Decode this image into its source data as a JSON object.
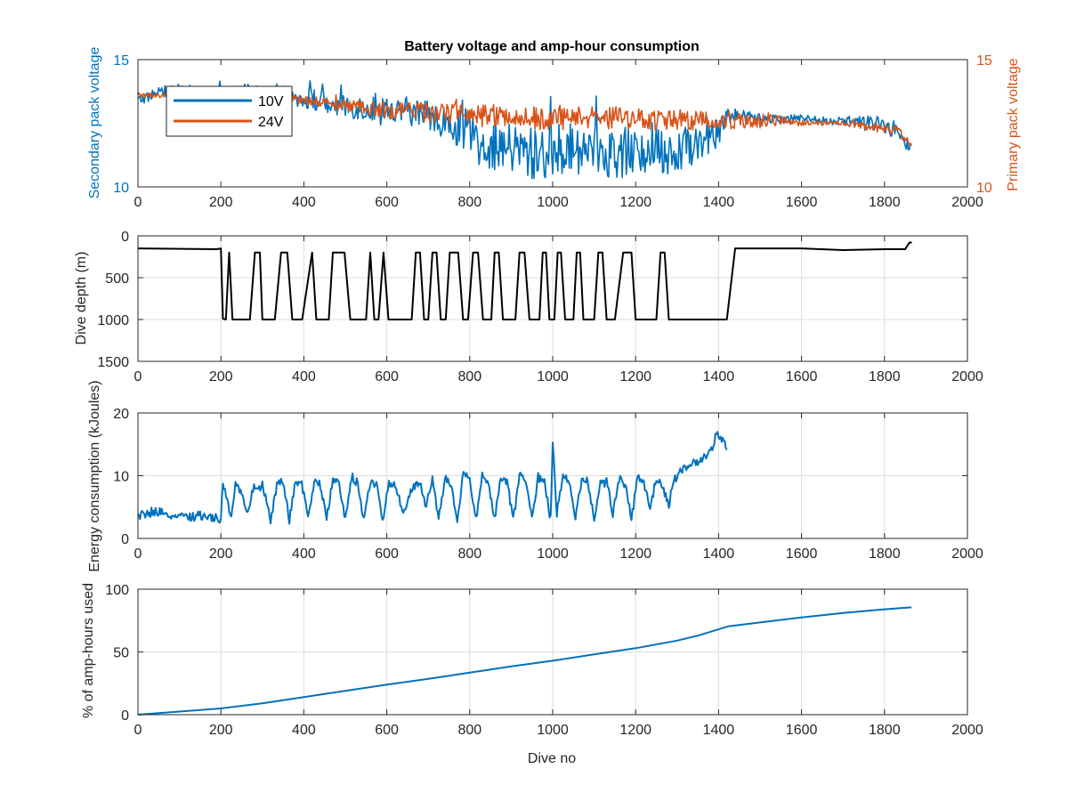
{
  "colors": {
    "blue": "#0072bd",
    "orange": "#d95319",
    "black": "#000000",
    "axis": "#262626",
    "grid": "#dcdcdc"
  },
  "chart_data": [
    {
      "type": "line",
      "title": "Battery voltage and amp-hour consumption",
      "xlabel": "",
      "ylabel": "Secondary pack voltage",
      "ylabel_right": "Primary pack voltage",
      "xlim": [
        0,
        2000
      ],
      "ylim": [
        10,
        15
      ],
      "ylim_right": [
        10,
        15
      ],
      "xticks": [
        0,
        200,
        400,
        600,
        800,
        1000,
        1200,
        1400,
        1600,
        1800,
        2000
      ],
      "yticks": [
        10,
        15
      ],
      "yticks_right": [
        10,
        15
      ],
      "grid": false,
      "legend_placement": "top-left",
      "series": [
        {
          "name": "10V",
          "color": "#0072bd",
          "axis": "left",
          "x": [
            0,
            50,
            100,
            150,
            200,
            250,
            300,
            350,
            400,
            450,
            500,
            550,
            600,
            650,
            700,
            750,
            800,
            850,
            900,
            950,
            1000,
            1050,
            1100,
            1150,
            1200,
            1250,
            1300,
            1350,
            1400,
            1420,
            1450,
            1500,
            1550,
            1600,
            1650,
            1700,
            1750,
            1800,
            1830,
            1850,
            1865
          ],
          "y": [
            13.4,
            13.7,
            13.8,
            13.7,
            13.6,
            13.8,
            13.6,
            13.6,
            13.5,
            13.3,
            13.2,
            13.1,
            12.9,
            13.0,
            12.8,
            12.5,
            12.0,
            11.6,
            11.5,
            11.3,
            11.4,
            11.5,
            11.5,
            11.3,
            11.4,
            11.6,
            11.2,
            11.8,
            12.4,
            12.8,
            12.8,
            12.7,
            12.7,
            12.7,
            12.6,
            12.6,
            12.5,
            12.4,
            12.2,
            11.8,
            11.5
          ],
          "noise_amplitude": [
            0.2,
            0.25,
            0.25,
            0.25,
            0.3,
            0.3,
            0.35,
            0.35,
            0.4,
            0.45,
            0.5,
            0.5,
            0.55,
            0.55,
            0.6,
            0.7,
            0.9,
            1.0,
            1.0,
            1.1,
            1.1,
            1.0,
            1.0,
            1.0,
            1.0,
            1.0,
            1.0,
            0.9,
            0.8,
            0.3,
            0.25,
            0.2,
            0.2,
            0.15,
            0.15,
            0.2,
            0.3,
            0.35,
            0.3,
            0.3,
            0.2
          ]
        },
        {
          "name": "24V",
          "color": "#d95319",
          "axis": "right",
          "x": [
            0,
            50,
            100,
            150,
            200,
            250,
            300,
            350,
            400,
            450,
            500,
            550,
            600,
            650,
            700,
            750,
            800,
            850,
            900,
            950,
            1000,
            1050,
            1100,
            1150,
            1200,
            1250,
            1300,
            1350,
            1400,
            1450,
            1500,
            1550,
            1600,
            1650,
            1700,
            1750,
            1800,
            1830,
            1850,
            1865
          ],
          "y": [
            13.6,
            13.6,
            13.6,
            13.5,
            13.5,
            13.5,
            13.5,
            13.4,
            13.4,
            13.3,
            13.2,
            13.1,
            13.0,
            13.0,
            12.9,
            12.9,
            12.8,
            12.8,
            12.8,
            12.7,
            12.7,
            12.7,
            12.7,
            12.7,
            12.7,
            12.6,
            12.6,
            12.6,
            12.6,
            12.6,
            12.6,
            12.6,
            12.5,
            12.5,
            12.5,
            12.4,
            12.3,
            12.2,
            11.9,
            11.6
          ],
          "noise_amplitude": [
            0.1,
            0.1,
            0.1,
            0.1,
            0.1,
            0.1,
            0.1,
            0.12,
            0.15,
            0.2,
            0.25,
            0.3,
            0.35,
            0.35,
            0.4,
            0.4,
            0.4,
            0.45,
            0.45,
            0.45,
            0.45,
            0.45,
            0.45,
            0.45,
            0.45,
            0.4,
            0.4,
            0.4,
            0.35,
            0.3,
            0.3,
            0.2,
            0.1,
            0.1,
            0.1,
            0.15,
            0.2,
            0.2,
            0.15,
            0.1
          ]
        }
      ]
    },
    {
      "type": "line",
      "title": "",
      "xlabel": "",
      "ylabel": "Dive depth (m)",
      "xlim": [
        0,
        2000
      ],
      "ylim": [
        0,
        1500
      ],
      "y_reversed": true,
      "xticks": [
        0,
        200,
        400,
        600,
        800,
        1000,
        1200,
        1400,
        1600,
        1800,
        2000
      ],
      "yticks": [
        0,
        500,
        1000,
        1500
      ],
      "grid": true,
      "series": [
        {
          "color": "#000000",
          "x": [
            0,
            190,
            200,
            205,
            212,
            220,
            228,
            236,
            244,
            270,
            282,
            294,
            300,
            315,
            330,
            345,
            360,
            372,
            384,
            396,
            420,
            430,
            440,
            450,
            460,
            470,
            484,
            498,
            512,
            520,
            528,
            536,
            550,
            560,
            570,
            580,
            592,
            604,
            620,
            640,
            660,
            670,
            680,
            690,
            700,
            710,
            720,
            730,
            742,
            752,
            762,
            772,
            784,
            796,
            808,
            820,
            832,
            842,
            852,
            860,
            870,
            880,
            890,
            900,
            910,
            920,
            932,
            944,
            956,
            968,
            976,
            984,
            992,
            1000,
            1004,
            1012,
            1020,
            1030,
            1040,
            1050,
            1058,
            1066,
            1074,
            1090,
            1100,
            1110,
            1120,
            1130,
            1140,
            1150,
            1170,
            1180,
            1190,
            1200,
            1230,
            1240,
            1250,
            1260,
            1270,
            1280,
            1400,
            1410,
            1420,
            1440,
            1600,
            1700,
            1800,
            1850,
            1860,
            1866
          ],
          "y": [
            150,
            160,
            150,
            990,
            1000,
            200,
            1000,
            1000,
            1000,
            1000,
            200,
            200,
            1000,
            1000,
            1000,
            200,
            200,
            1000,
            1000,
            1000,
            200,
            1000,
            1000,
            1000,
            1000,
            200,
            200,
            200,
            1000,
            1000,
            1000,
            1000,
            1000,
            200,
            1000,
            1000,
            200,
            1000,
            1000,
            1000,
            1000,
            200,
            200,
            1000,
            1000,
            200,
            200,
            1000,
            1000,
            200,
            200,
            200,
            1000,
            1000,
            200,
            200,
            1000,
            1000,
            1000,
            200,
            200,
            1000,
            1000,
            1000,
            1000,
            200,
            200,
            1000,
            1000,
            1000,
            200,
            200,
            1000,
            1000,
            1000,
            200,
            200,
            1000,
            1000,
            1000,
            200,
            200,
            1000,
            1000,
            1000,
            200,
            200,
            1000,
            1000,
            1000,
            200,
            200,
            200,
            1000,
            1000,
            1000,
            1000,
            200,
            200,
            1000,
            1000,
            1000,
            1000,
            150,
            150,
            170,
            160,
            160,
            80,
            80
          ]
        }
      ]
    },
    {
      "type": "line",
      "title": "",
      "xlabel": "",
      "ylabel": "Energy consumption (kJoules)",
      "xlim": [
        0,
        2000
      ],
      "ylim": [
        0,
        20
      ],
      "xticks": [
        0,
        200,
        400,
        600,
        800,
        1000,
        1200,
        1400,
        1600,
        1800,
        2000
      ],
      "yticks": [
        0,
        10,
        20
      ],
      "grid": true,
      "series": [
        {
          "color": "#0072bd",
          "x": [
            0,
            20,
            50,
            80,
            120,
            160,
            200,
            205,
            215,
            225,
            235,
            250,
            265,
            280,
            290,
            300,
            320,
            335,
            350,
            365,
            380,
            395,
            410,
            425,
            440,
            455,
            470,
            485,
            500,
            515,
            530,
            545,
            560,
            575,
            590,
            605,
            620,
            640,
            660,
            680,
            695,
            710,
            725,
            740,
            755,
            770,
            785,
            800,
            815,
            830,
            845,
            860,
            875,
            890,
            905,
            920,
            935,
            950,
            965,
            980,
            995,
            1000,
            1010,
            1025,
            1040,
            1055,
            1070,
            1085,
            1100,
            1115,
            1130,
            1145,
            1160,
            1175,
            1190,
            1205,
            1220,
            1235,
            1250,
            1265,
            1280,
            1290,
            1310,
            1330,
            1350,
            1370,
            1385,
            1395,
            1405,
            1420
          ],
          "y": [
            3.5,
            4,
            3.6,
            3.8,
            3.4,
            3.5,
            3.2,
            9,
            6,
            3.5,
            8.5,
            7,
            4,
            8.5,
            7.5,
            9,
            3,
            8.5,
            9,
            3,
            9,
            8.5,
            3.5,
            9,
            8.5,
            3,
            9.5,
            9,
            3,
            9.5,
            8.5,
            3,
            9,
            8.5,
            3,
            9,
            8.5,
            4,
            8,
            9,
            5,
            9.5,
            3,
            9.5,
            8.5,
            3,
            10.5,
            9,
            3,
            10,
            9,
            3,
            9.5,
            9,
            3,
            10,
            9,
            3.5,
            9.5,
            9,
            3,
            15,
            4,
            10,
            9,
            3.5,
            9.5,
            9,
            3,
            8.5,
            9,
            4,
            9.5,
            8.5,
            3,
            10,
            9,
            4.5,
            9.5,
            8.5,
            5,
            9,
            11,
            11.5,
            12,
            13,
            14.5,
            16.5,
            16,
            14.5
          ],
          "noise_amplitude": 0.7
        }
      ]
    },
    {
      "type": "line",
      "title": "",
      "xlabel": "Dive no",
      "ylabel": "% of amp-hours used",
      "xlim": [
        0,
        2000
      ],
      "ylim": [
        0,
        100
      ],
      "xticks": [
        0,
        200,
        400,
        600,
        800,
        1000,
        1200,
        1400,
        1600,
        1800,
        2000
      ],
      "yticks": [
        0,
        50,
        100
      ],
      "grid": true,
      "series": [
        {
          "color": "#0072bd",
          "x": [
            0,
            100,
            200,
            300,
            400,
            500,
            600,
            700,
            800,
            900,
            1000,
            1100,
            1200,
            1300,
            1350,
            1400,
            1425,
            1500,
            1600,
            1700,
            1800,
            1865
          ],
          "y": [
            0,
            2.5,
            5,
            9,
            14,
            19,
            24,
            28.5,
            33.5,
            38.5,
            43,
            48,
            53,
            59,
            63,
            68,
            70.5,
            73.5,
            77.5,
            81,
            84,
            85.5
          ]
        }
      ]
    }
  ]
}
